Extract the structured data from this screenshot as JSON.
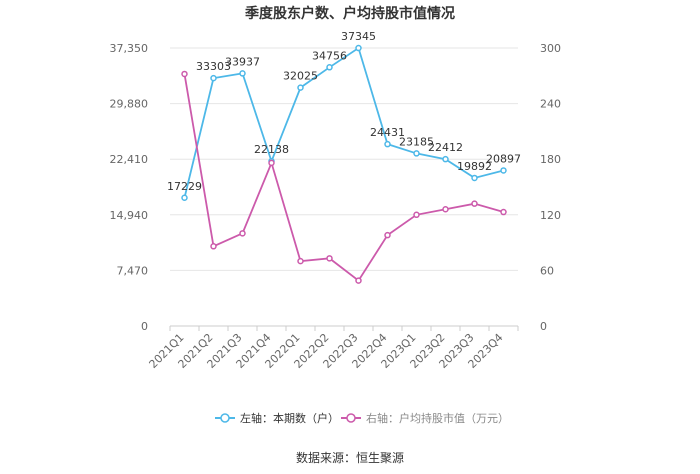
{
  "chart_data": {
    "type": "line",
    "title": "季度股东户数、户均持股市值情况",
    "categories": [
      "2021Q1",
      "2021Q2",
      "2021Q3",
      "2021Q4",
      "2022Q1",
      "2022Q2",
      "2022Q3",
      "2022Q4",
      "2023Q1",
      "2023Q2",
      "2023Q3",
      "2023Q4"
    ],
    "left_axis": {
      "ylim": [
        0,
        37350
      ],
      "ticks": [
        "0",
        "7,470",
        "14,940",
        "22,410",
        "29,880",
        "37,350"
      ]
    },
    "right_axis": {
      "ylim": [
        0,
        300
      ],
      "ticks": [
        "0",
        "60",
        "120",
        "180",
        "240",
        "300"
      ]
    },
    "series": [
      {
        "name": "左轴：本期数（户）",
        "axis": "left",
        "color": "#4db8e8",
        "values": [
          17229,
          33303,
          33937,
          22138,
          32025,
          34756,
          37345,
          24431,
          23185,
          22412,
          19892,
          20897
        ],
        "labels": [
          "17229",
          "33303",
          "33937",
          "22138",
          "32025",
          "34756",
          "37345",
          "24431",
          "23185",
          "22412",
          "19892",
          "20897"
        ]
      },
      {
        "name": "右轴：户均持股市值（万元）",
        "axis": "right",
        "color": "#cc5aab",
        "values": [
          272,
          86,
          100,
          176,
          70,
          73,
          49,
          98,
          120,
          126,
          132,
          123
        ]
      }
    ],
    "grid": true,
    "legend_position": "bottom",
    "source": "数据来源：恒生聚源"
  }
}
